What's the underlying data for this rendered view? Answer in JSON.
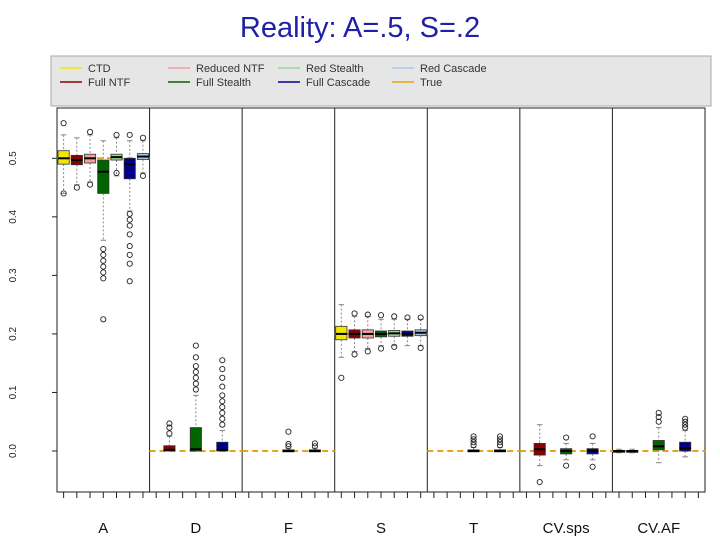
{
  "slide": {
    "title": "Reality: A=.5, S=.2"
  },
  "colors": {
    "title": "#1f1fa8",
    "legend_bg": "#e6e6e6",
    "true_line": "#e8a317",
    "whisker": "#888888"
  },
  "legend": {
    "items": [
      {
        "label": "CTD",
        "color": "#f2e600"
      },
      {
        "label": "Full NTF",
        "color": "#8b0000"
      },
      {
        "label": "Reduced NTF",
        "color": "#f4a0a0"
      },
      {
        "label": "Full Stealth",
        "color": "#006400"
      },
      {
        "label": "Red Stealth",
        "color": "#98d898"
      },
      {
        "label": "Full Cascade",
        "color": "#00008b"
      },
      {
        "label": "Red Cascade",
        "color": "#a8c8e8"
      },
      {
        "label": "True",
        "color": "#e8a317"
      }
    ]
  },
  "chart_data": {
    "type": "boxplot",
    "title": "Reality: A=.5, S=.2",
    "ylim": [
      -0.07,
      0.57
    ],
    "yticks": [
      0.0,
      0.1,
      0.2,
      0.3,
      0.4,
      0.5
    ],
    "ytick_labels": [
      "0.0",
      "0.1",
      "0.2",
      "0.3",
      "0.4",
      "0.5"
    ],
    "grid": false,
    "legend_position": "top",
    "methods": [
      "CTD",
      "Full NTF",
      "Reduced NTF",
      "Full Stealth",
      "Red Stealth",
      "Full Cascade",
      "Red Cascade"
    ],
    "groups": [
      {
        "label": "A",
        "true_value": 0.5,
        "boxes": [
          {
            "method": "CTD",
            "q1": 0.49,
            "median": 0.5,
            "q3": 0.513,
            "lw": 0.44,
            "uw": 0.54,
            "outliers": [
              0.56,
              0.44
            ]
          },
          {
            "method": "Full NTF",
            "q1": 0.489,
            "median": 0.497,
            "q3": 0.505,
            "lw": 0.455,
            "uw": 0.535,
            "outliers": [
              0.45
            ]
          },
          {
            "method": "Reduced NTF",
            "q1": 0.492,
            "median": 0.5,
            "q3": 0.507,
            "lw": 0.46,
            "uw": 0.54,
            "outliers": [
              0.545,
              0.455
            ]
          },
          {
            "method": "Full Stealth",
            "q1": 0.44,
            "median": 0.477,
            "q3": 0.497,
            "lw": 0.36,
            "uw": 0.53,
            "outliers": [
              0.345,
              0.335,
              0.325,
              0.315,
              0.305,
              0.295,
              0.225
            ]
          },
          {
            "method": "Red Stealth",
            "q1": 0.497,
            "median": 0.502,
            "q3": 0.507,
            "lw": 0.47,
            "uw": 0.535,
            "outliers": [
              0.475,
              0.54
            ]
          },
          {
            "method": "Full Cascade",
            "q1": 0.465,
            "median": 0.49,
            "q3": 0.5,
            "lw": 0.41,
            "uw": 0.53,
            "outliers": [
              0.405,
              0.395,
              0.385,
              0.37,
              0.35,
              0.335,
              0.32,
              0.29,
              0.54
            ]
          },
          {
            "method": "Red Cascade",
            "q1": 0.498,
            "median": 0.503,
            "q3": 0.508,
            "lw": 0.475,
            "uw": 0.53,
            "outliers": [
              0.47,
              0.535
            ]
          }
        ]
      },
      {
        "label": "D",
        "true_value": 0.0,
        "boxes": [
          {
            "method": "Full NTF",
            "q1": 0.0,
            "median": 0.002,
            "q3": 0.009,
            "lw": 0.0,
            "uw": 0.025,
            "outliers": [
              0.03,
              0.04,
              0.047
            ]
          },
          {
            "method": "Full Stealth",
            "q1": 0.0,
            "median": 0.003,
            "q3": 0.04,
            "lw": 0.0,
            "uw": 0.095,
            "outliers": [
              0.105,
              0.115,
              0.125,
              0.135,
              0.145,
              0.16,
              0.18
            ]
          },
          {
            "method": "Full Cascade",
            "q1": 0.0,
            "median": 0.002,
            "q3": 0.015,
            "lw": 0.0,
            "uw": 0.035,
            "outliers": [
              0.045,
              0.055,
              0.065,
              0.075,
              0.085,
              0.095,
              0.11,
              0.125,
              0.14,
              0.155
            ]
          }
        ]
      },
      {
        "label": "F",
        "true_value": 0.0,
        "boxes": [
          {
            "method": "Full Stealth",
            "q1": 0.0,
            "median": 0.0,
            "q3": 0.002,
            "lw": 0.0,
            "uw": 0.005,
            "outliers": [
              0.008,
              0.012,
              0.033
            ]
          },
          {
            "method": "Full Cascade",
            "q1": 0.0,
            "median": 0.0,
            "q3": 0.002,
            "lw": 0.0,
            "uw": 0.005,
            "outliers": [
              0.008,
              0.013
            ]
          }
        ]
      },
      {
        "label": "S",
        "true_value": 0.2,
        "boxes": [
          {
            "method": "CTD",
            "q1": 0.19,
            "median": 0.2,
            "q3": 0.213,
            "lw": 0.16,
            "uw": 0.25,
            "outliers": [
              0.125
            ]
          },
          {
            "method": "Full NTF",
            "q1": 0.193,
            "median": 0.2,
            "q3": 0.207,
            "lw": 0.17,
            "uw": 0.23,
            "outliers": [
              0.165,
              0.235
            ]
          },
          {
            "method": "Reduced NTF",
            "q1": 0.193,
            "median": 0.2,
            "q3": 0.207,
            "lw": 0.175,
            "uw": 0.23,
            "outliers": [
              0.17,
              0.233
            ]
          },
          {
            "method": "Full Stealth",
            "q1": 0.195,
            "median": 0.2,
            "q3": 0.205,
            "lw": 0.18,
            "uw": 0.225,
            "outliers": [
              0.175,
              0.232
            ]
          },
          {
            "method": "Red Stealth",
            "q1": 0.196,
            "median": 0.201,
            "q3": 0.206,
            "lw": 0.18,
            "uw": 0.225,
            "outliers": [
              0.178,
              0.23
            ]
          },
          {
            "method": "Full Cascade",
            "q1": 0.196,
            "median": 0.2,
            "q3": 0.205,
            "lw": 0.18,
            "uw": 0.225,
            "outliers": [
              0.228
            ]
          },
          {
            "method": "Red Cascade",
            "q1": 0.197,
            "median": 0.202,
            "q3": 0.207,
            "lw": 0.18,
            "uw": 0.225,
            "outliers": [
              0.176,
              0.228
            ]
          }
        ]
      },
      {
        "label": "T",
        "true_value": 0.0,
        "boxes": [
          {
            "method": "Full Stealth",
            "q1": 0.0,
            "median": 0.0,
            "q3": 0.002,
            "lw": 0.0,
            "uw": 0.006,
            "outliers": [
              0.01,
              0.015,
              0.02,
              0.025
            ]
          },
          {
            "method": "Full Cascade",
            "q1": 0.0,
            "median": 0.0,
            "q3": 0.002,
            "lw": 0.0,
            "uw": 0.006,
            "outliers": [
              0.01,
              0.015,
              0.02,
              0.025
            ]
          }
        ]
      },
      {
        "label": "CV.sps",
        "true_value": 0.0,
        "boxes": [
          {
            "method": "Full NTF",
            "q1": -0.007,
            "median": 0.003,
            "q3": 0.013,
            "lw": -0.025,
            "uw": 0.045,
            "outliers": [
              -0.053
            ]
          },
          {
            "method": "Full Stealth",
            "q1": -0.005,
            "median": 0.0,
            "q3": 0.004,
            "lw": -0.015,
            "uw": 0.013,
            "outliers": [
              0.023,
              -0.025
            ]
          },
          {
            "method": "Full Cascade",
            "q1": -0.005,
            "median": 0.0,
            "q3": 0.004,
            "lw": -0.015,
            "uw": 0.013,
            "outliers": [
              0.025,
              -0.027
            ]
          }
        ]
      },
      {
        "label": "CV.AF",
        "true_value": 0.0,
        "boxes": [
          {
            "method": "CTD",
            "q1": -0.001,
            "median": 0.0,
            "q3": 0.001,
            "lw": -0.003,
            "uw": 0.003,
            "outliers": []
          },
          {
            "method": "Full NTF",
            "q1": -0.001,
            "median": 0.0,
            "q3": 0.001,
            "lw": -0.003,
            "uw": 0.003,
            "outliers": []
          },
          {
            "method": "Full Stealth",
            "q1": 0.002,
            "median": 0.008,
            "q3": 0.018,
            "lw": -0.02,
            "uw": 0.04,
            "outliers": [
              0.05,
              0.058,
              0.065
            ]
          },
          {
            "method": "Full Cascade",
            "q1": 0.0,
            "median": 0.005,
            "q3": 0.015,
            "lw": -0.01,
            "uw": 0.035,
            "outliers": [
              0.04,
              0.045,
              0.05,
              0.055
            ]
          }
        ]
      }
    ]
  }
}
